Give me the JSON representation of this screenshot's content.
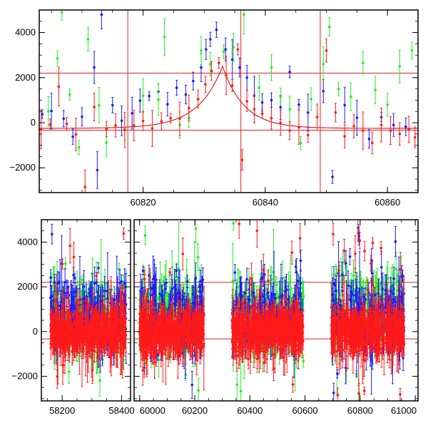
{
  "chart_data": [
    {
      "type": "scatter",
      "name": "top-panel",
      "title": "",
      "xlabel": "",
      "ylabel": "",
      "xlim": [
        60803,
        60865
      ],
      "ylim": [
        -3100,
        5000
      ],
      "xticks": [
        60820,
        60840,
        60860
      ],
      "xtick_labels": [
        "60820",
        "60840",
        "60860"
      ],
      "yticks": [
        -2000,
        0,
        2000,
        4000
      ],
      "ytick_labels": [
        "−2000",
        "0",
        "2000",
        "4000"
      ],
      "hlines": [
        2200,
        -330
      ],
      "vlines": [
        60817.5,
        60836.0,
        60849.0
      ],
      "model_curve": {
        "peak_x": 60833,
        "peak_y": 2500,
        "baseline": -250,
        "rise_width": 4.0,
        "decay_width": 3.2
      },
      "colors": {
        "series_a": "#1a1aff",
        "series_b": "#22ee22",
        "series_c": "#ff1a1a",
        "lines": "#dd2222"
      },
      "series": [
        {
          "name": "blue",
          "points": [
            [
              60803.5,
              380
            ],
            [
              60805,
              520
            ],
            [
              60807,
              180
            ],
            [
              60808.5,
              -620
            ],
            [
              60810,
              260
            ],
            [
              60812,
              2450
            ],
            [
              60812.5,
              -2100
            ],
            [
              60813.2,
              4800
            ],
            [
              60815,
              780
            ],
            [
              60816.5,
              90
            ],
            [
              60818.2,
              420
            ],
            [
              60819.5,
              980
            ],
            [
              60821,
              1180
            ],
            [
              60822.5,
              1380
            ],
            [
              60824,
              820
            ],
            [
              60825.5,
              1550
            ],
            [
              60827,
              1250
            ],
            [
              60828.2,
              1850
            ],
            [
              60829.5,
              2450
            ],
            [
              60830.3,
              3250
            ],
            [
              60831,
              3700
            ],
            [
              60832,
              4120
            ],
            [
              60833.5,
              3250
            ],
            [
              60834.6,
              2800
            ],
            [
              60835.8,
              2450
            ],
            [
              60837,
              2000
            ],
            [
              60838.2,
              1200
            ],
            [
              60839.5,
              900
            ],
            [
              60841,
              1000
            ],
            [
              60842.5,
              680
            ],
            [
              60844,
              2250
            ],
            [
              60845.5,
              800
            ],
            [
              60847,
              450
            ],
            [
              60849.5,
              1400
            ],
            [
              60851,
              -2400
            ],
            [
              60853,
              780
            ],
            [
              60855,
              220
            ],
            [
              60857,
              -720
            ],
            [
              60859,
              250
            ],
            [
              60861,
              -100
            ],
            [
              60863,
              -180
            ]
          ]
        },
        {
          "name": "green",
          "points": [
            [
              60804.5,
              500
            ],
            [
              60806,
              2850
            ],
            [
              60806.7,
              4900
            ],
            [
              60808,
              1250
            ],
            [
              60809.5,
              -1100
            ],
            [
              60811,
              3700
            ],
            [
              60812.8,
              780
            ],
            [
              60814,
              -880
            ],
            [
              60817,
              -280
            ],
            [
              60820,
              1200
            ],
            [
              60822.5,
              1020
            ],
            [
              60823.5,
              3800
            ],
            [
              60826,
              -100
            ],
            [
              60827.5,
              200
            ],
            [
              60829.5,
              3200
            ],
            [
              60831,
              2600
            ],
            [
              60833.2,
              3150
            ],
            [
              60834.8,
              3350
            ],
            [
              60836.5,
              4800
            ],
            [
              60839,
              1550
            ],
            [
              60841,
              2450
            ],
            [
              60842.5,
              1150
            ],
            [
              60844,
              600
            ],
            [
              60845.8,
              -900
            ],
            [
              60847.5,
              1050
            ],
            [
              60849.5,
              2600
            ],
            [
              60850.5,
              4250
            ],
            [
              60852,
              1500
            ],
            [
              60854,
              1150
            ],
            [
              60856,
              2650
            ],
            [
              60858,
              1450
            ],
            [
              60860,
              800
            ],
            [
              60862,
              2500
            ],
            [
              60864,
              3200
            ]
          ]
        },
        {
          "name": "red",
          "points": [
            [
              60803.3,
              -300
            ],
            [
              60804.8,
              -80
            ],
            [
              60806.2,
              1600
            ],
            [
              60807.5,
              -50
            ],
            [
              60809,
              -520
            ],
            [
              60810.5,
              -2850
            ],
            [
              60812,
              700
            ],
            [
              60814,
              -280
            ],
            [
              60815.5,
              -120
            ],
            [
              60817,
              -320
            ],
            [
              60818.5,
              -120
            ],
            [
              60820,
              80
            ],
            [
              60821.5,
              -250
            ],
            [
              60823,
              60
            ],
            [
              60824.5,
              200
            ],
            [
              60826,
              180
            ],
            [
              60827.5,
              650
            ],
            [
              60829,
              1050
            ],
            [
              60830.2,
              1700
            ],
            [
              60831.2,
              2300
            ],
            [
              60832.4,
              2650
            ],
            [
              60833.6,
              2100
            ],
            [
              60834.6,
              1650
            ],
            [
              60835.5,
              3250
            ],
            [
              60836.2,
              -1650
            ],
            [
              60837,
              950
            ],
            [
              60838.2,
              600
            ],
            [
              60839.5,
              400
            ],
            [
              60841,
              200
            ],
            [
              60842.5,
              0
            ],
            [
              60844,
              -350
            ],
            [
              60845.5,
              -200
            ],
            [
              60847,
              -550
            ],
            [
              60848.5,
              250
            ],
            [
              60850,
              3200
            ],
            [
              60851.5,
              450
            ],
            [
              60853,
              -600
            ],
            [
              60854.5,
              -150
            ],
            [
              60856,
              -350
            ],
            [
              60857.5,
              -900
            ],
            [
              60859,
              -100
            ],
            [
              60860.5,
              -350
            ],
            [
              60862,
              -500
            ],
            [
              60863.5,
              -300
            ],
            [
              60864.5,
              -650
            ]
          ]
        }
      ]
    },
    {
      "type": "scatter",
      "name": "bottom-panel",
      "title": "",
      "xlabel": "",
      "ylabel": "",
      "broken_axis": true,
      "ylim": [
        -3100,
        5000
      ],
      "yticks": [
        -2000,
        0,
        2000,
        4000
      ],
      "ytick_labels": [
        "−2000",
        "0",
        "2000",
        "4000"
      ],
      "hlines": [
        2200,
        -330
      ],
      "segments": [
        {
          "xlim": [
            58130,
            58430
          ],
          "xticks": [
            58200,
            58400
          ],
          "xtick_labels": [
            "58200",
            "58400"
          ],
          "clusters": [
            {
              "x0": 58160,
              "x1": 58415,
              "spread": 1400,
              "extreme": 4800
            }
          ]
        },
        {
          "xlim": [
            59980,
            61010
          ],
          "xticks": [
            60000,
            60200,
            60400,
            60600,
            60800,
            61000
          ],
          "xtick_labels": [
            "60000",
            "60200",
            "60400",
            "60600",
            "60800",
            "61000"
          ],
          "clusters": [
            {
              "x0": 60000,
              "x1": 60235,
              "spread": 1500,
              "extreme": 4900
            },
            {
              "x0": 60335,
              "x1": 60595,
              "spread": 1500,
              "extreme": 4900
            },
            {
              "x0": 60695,
              "x1": 60960,
              "spread": 1500,
              "extreme": 4900
            }
          ]
        }
      ]
    }
  ]
}
